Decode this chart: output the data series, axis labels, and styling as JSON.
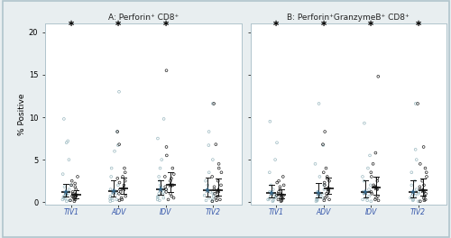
{
  "panel_A_title": "A: Perforin⁺ CD8⁺",
  "panel_B_title": "B: Perforin⁺GranzymeB⁺ CD8⁺",
  "groups": [
    "TIV1",
    "ADV",
    "IDV",
    "TIV2"
  ],
  "ylabel": "% Positive",
  "ylim": [
    -0.3,
    21
  ],
  "yticks": [
    0,
    5,
    10,
    15,
    20
  ],
  "significance_A": [
    true,
    true,
    true,
    false
  ],
  "significance_B": [
    true,
    true,
    true,
    true
  ],
  "pre_A": {
    "TIV1": [
      0.1,
      0.2,
      0.3,
      0.4,
      0.5,
      0.6,
      0.7,
      0.8,
      0.9,
      1.0,
      1.2,
      1.5,
      1.8,
      2.0,
      3.3,
      5.0,
      7.0,
      7.2,
      9.8
    ],
    "ADV": [
      0.1,
      0.2,
      0.3,
      0.4,
      0.5,
      0.7,
      0.8,
      1.0,
      1.1,
      1.3,
      1.5,
      2.0,
      3.0,
      4.0,
      6.0,
      6.7,
      8.3,
      13.0
    ],
    "IDV": [
      0.2,
      0.3,
      0.5,
      0.6,
      0.7,
      0.9,
      1.0,
      1.2,
      1.5,
      1.8,
      2.0,
      2.5,
      3.0,
      4.0,
      5.0,
      7.5,
      9.8
    ],
    "TIV2": [
      0.1,
      0.2,
      0.3,
      0.5,
      0.7,
      0.8,
      1.0,
      1.2,
      1.5,
      2.0,
      2.5,
      3.5,
      5.0,
      6.7,
      8.3,
      11.6
    ]
  },
  "post_A": {
    "TIV1": [
      0.1,
      0.2,
      0.3,
      0.4,
      0.5,
      0.6,
      0.7,
      0.8,
      1.0,
      1.2,
      1.5,
      1.8,
      2.0,
      2.2,
      2.5,
      3.0
    ],
    "ADV": [
      0.2,
      0.3,
      0.5,
      0.7,
      1.0,
      1.2,
      1.5,
      2.0,
      2.3,
      2.5,
      2.8,
      3.0,
      3.5,
      4.0,
      6.8,
      8.3
    ],
    "IDV": [
      0.3,
      0.5,
      0.7,
      1.0,
      1.2,
      1.5,
      1.8,
      2.0,
      2.5,
      2.8,
      3.0,
      3.3,
      4.0,
      5.5,
      6.5,
      15.5
    ],
    "TIV2": [
      0.1,
      0.2,
      0.3,
      0.5,
      0.7,
      1.0,
      1.2,
      1.5,
      1.8,
      2.0,
      2.5,
      3.0,
      3.5,
      4.0,
      4.5,
      6.8,
      11.6
    ]
  },
  "pre_B": {
    "TIV1": [
      0.1,
      0.2,
      0.3,
      0.4,
      0.5,
      0.6,
      0.7,
      0.8,
      1.0,
      1.2,
      1.5,
      2.0,
      3.5,
      5.0,
      7.0,
      9.5
    ],
    "ADV": [
      0.1,
      0.2,
      0.3,
      0.4,
      0.5,
      0.7,
      0.8,
      1.0,
      1.2,
      1.5,
      2.0,
      3.0,
      4.5,
      6.7,
      11.6
    ],
    "IDV": [
      0.1,
      0.2,
      0.3,
      0.5,
      0.7,
      1.0,
      1.2,
      1.5,
      2.0,
      2.5,
      3.0,
      4.0,
      5.5,
      9.3
    ],
    "TIV2": [
      0.1,
      0.2,
      0.3,
      0.5,
      0.7,
      0.8,
      1.0,
      1.2,
      1.5,
      2.0,
      2.5,
      3.5,
      5.0,
      6.2,
      11.6
    ]
  },
  "post_B": {
    "TIV1": [
      0.1,
      0.2,
      0.3,
      0.4,
      0.5,
      0.7,
      0.8,
      1.0,
      1.2,
      1.5,
      1.8,
      2.0,
      2.3,
      2.5,
      3.0
    ],
    "ADV": [
      0.2,
      0.3,
      0.5,
      0.7,
      1.0,
      1.2,
      1.5,
      2.0,
      2.3,
      2.5,
      2.8,
      3.0,
      3.5,
      4.0,
      6.8,
      8.3
    ],
    "IDV": [
      0.2,
      0.3,
      0.5,
      0.7,
      1.0,
      1.2,
      1.5,
      1.8,
      2.0,
      2.5,
      2.8,
      3.0,
      3.5,
      4.5,
      5.8,
      14.8
    ],
    "TIV2": [
      0.1,
      0.2,
      0.3,
      0.5,
      0.7,
      1.0,
      1.2,
      1.5,
      1.8,
      2.0,
      2.5,
      3.0,
      3.5,
      4.0,
      4.5,
      6.5,
      11.6
    ]
  },
  "pre_color": "#9ab8c0",
  "post_color": "#222222",
  "tick_color": "#3355aa",
  "border_color": "#b0c4cc",
  "fig_bg": "#e8eef0",
  "plot_bg": "#ffffff",
  "star_marker_color": "#222222",
  "geo_mean_pre_color": "#336688",
  "geo_mean_post_color": "#111111"
}
